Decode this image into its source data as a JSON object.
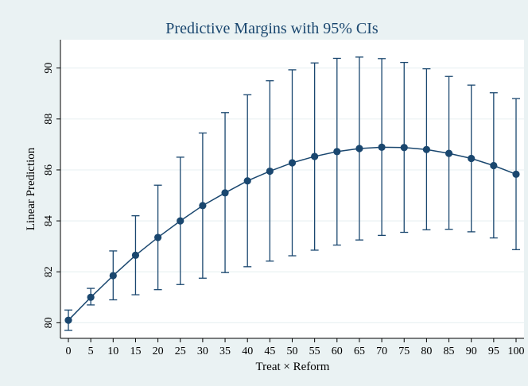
{
  "chart_data": {
    "type": "line",
    "title": "Predictive Margins with 95% CIs",
    "xlabel": "Treat × Reform",
    "ylabel": "Linear Prediction",
    "x": [
      0,
      5,
      10,
      15,
      20,
      25,
      30,
      35,
      40,
      45,
      50,
      55,
      60,
      65,
      70,
      75,
      80,
      85,
      90,
      95,
      100
    ],
    "xlim": [
      0,
      100
    ],
    "ylim": [
      79.7,
      90.8
    ],
    "x_ticks": [
      "0",
      "5",
      "10",
      "15",
      "20",
      "25",
      "30",
      "35",
      "40",
      "45",
      "50",
      "55",
      "60",
      "65",
      "70",
      "75",
      "80",
      "85",
      "90",
      "95",
      "100"
    ],
    "y_ticks": [
      "80",
      "82",
      "84",
      "86",
      "88",
      "90"
    ],
    "grid": true,
    "legend": "none",
    "series": [
      {
        "values": [
          80.1,
          81.0,
          81.85,
          82.65,
          83.35,
          84.0,
          84.6,
          85.1,
          85.57,
          85.95,
          86.28,
          86.53,
          86.72,
          86.84,
          86.89,
          86.88,
          86.8,
          86.65,
          86.45,
          86.17,
          85.83
        ],
        "ci_low": [
          79.7,
          80.7,
          80.9,
          81.1,
          81.3,
          81.5,
          81.75,
          81.97,
          82.2,
          82.42,
          82.63,
          82.85,
          83.05,
          83.25,
          83.43,
          83.55,
          83.65,
          83.67,
          83.57,
          83.33,
          82.87
        ],
        "ci_high": [
          80.5,
          81.35,
          82.82,
          84.2,
          85.4,
          86.5,
          87.45,
          88.25,
          88.95,
          89.5,
          89.93,
          90.2,
          90.38,
          90.43,
          90.37,
          90.22,
          89.97,
          89.67,
          89.33,
          89.03,
          88.8
        ]
      }
    ],
    "colors": {
      "background": "#eaf2f3",
      "plot_background": "#ffffff",
      "series": "#1a476f",
      "grid": "#eaf2f3",
      "title": "#1a476f"
    }
  }
}
